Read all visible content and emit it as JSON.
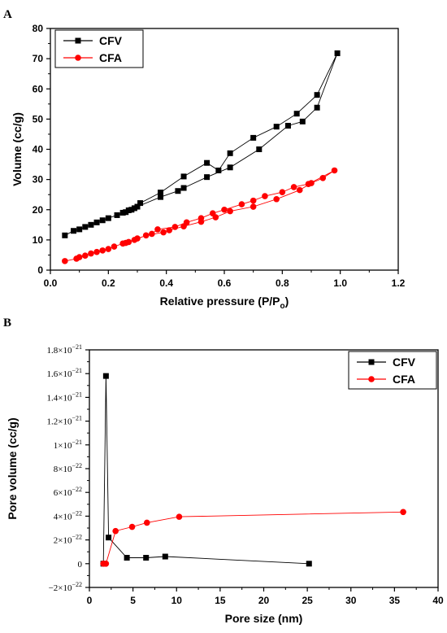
{
  "chart_data": [
    {
      "panel_label": "A",
      "type": "scatter",
      "xlabel": "Relative pressure (P/P",
      "xlabel_sub": "o",
      "xlabel_end": ")",
      "ylabel": "Volume (cc/g)",
      "xlim": [
        0.0,
        1.2
      ],
      "ylim": [
        0,
        80
      ],
      "xticks": [
        0.0,
        0.2,
        0.4,
        0.6,
        0.8,
        1.0,
        1.2
      ],
      "xtick_labels": [
        "0.0",
        "0.2",
        "0.4",
        "0.6",
        "0.8",
        "1.0",
        "1.2"
      ],
      "yticks": [
        0,
        10,
        20,
        30,
        40,
        50,
        60,
        70,
        80
      ],
      "ytick_labels": [
        "0",
        "10",
        "20",
        "30",
        "40",
        "50",
        "60",
        "70",
        "80"
      ],
      "legend": "top-left",
      "series": [
        {
          "name": "CFV",
          "color": "#000000",
          "marker": "square",
          "x": [
            0.05,
            0.08,
            0.1,
            0.12,
            0.14,
            0.16,
            0.18,
            0.2,
            0.23,
            0.26,
            0.28,
            0.3,
            0.38,
            0.44,
            0.46,
            0.54,
            0.62,
            0.72,
            0.82,
            0.87,
            0.92,
            0.99,
            0.92,
            0.85,
            0.78,
            0.7,
            0.62,
            0.58,
            0.54,
            0.46,
            0.38,
            0.31,
            0.29,
            0.27,
            0.25
          ],
          "y": [
            11.5,
            13,
            13.5,
            14.3,
            15,
            15.8,
            16.5,
            17.2,
            18.2,
            19.2,
            20,
            21,
            24.2,
            26.2,
            27.2,
            30.8,
            34,
            40,
            47.8,
            49.2,
            53.8,
            71.8,
            58,
            51.8,
            47.5,
            43.8,
            38.7,
            33,
            35.5,
            31,
            25.7,
            22.2,
            20.5,
            19.8,
            19
          ]
        },
        {
          "name": "CFA",
          "color": "#ff0000",
          "marker": "circle",
          "x": [
            0.05,
            0.09,
            0.1,
            0.12,
            0.14,
            0.16,
            0.18,
            0.2,
            0.22,
            0.25,
            0.27,
            0.29,
            0.33,
            0.39,
            0.41,
            0.46,
            0.52,
            0.57,
            0.62,
            0.7,
            0.78,
            0.86,
            0.9,
            0.94,
            0.98,
            0.89,
            0.84,
            0.8,
            0.74,
            0.7,
            0.66,
            0.6,
            0.56,
            0.52,
            0.47,
            0.43,
            0.37,
            0.35,
            0.3,
            0.26
          ],
          "y": [
            3,
            3.8,
            4.3,
            4.8,
            5.5,
            6,
            6.5,
            7,
            7.8,
            8.8,
            9.3,
            10,
            11.5,
            12.5,
            13.2,
            14.5,
            16,
            17.5,
            19.5,
            21,
            23.5,
            26.5,
            28.8,
            30.5,
            33,
            28.5,
            27.5,
            25.8,
            24.5,
            23,
            21.8,
            20,
            18.8,
            17.2,
            15.8,
            14.3,
            13.5,
            12,
            10.5,
            9
          ]
        }
      ]
    },
    {
      "panel_label": "B",
      "type": "line",
      "xlabel": "Pore size (nm)",
      "ylabel": "Pore volume (cc/g)",
      "xlim": [
        0,
        40
      ],
      "ylim": [
        -2e-22,
        1.8e-21
      ],
      "xticks": [
        0,
        5,
        10,
        15,
        20,
        25,
        30,
        35,
        40
      ],
      "xtick_labels": [
        "0",
        "5",
        "10",
        "15",
        "20",
        "25",
        "30",
        "35",
        "40"
      ],
      "yticks": [
        -2e-22,
        0,
        2e-22,
        4e-22,
        6e-22,
        8e-22,
        1e-21,
        1.2e-21,
        1.4e-21,
        1.6e-21,
        1.8e-21
      ],
      "ytick_labels": [
        {
          "m": "−2",
          "e": "−22"
        },
        {
          "m": "0",
          "e": ""
        },
        {
          "m": "2",
          "e": "−22"
        },
        {
          "m": "4",
          "e": "−22"
        },
        {
          "m": "6",
          "e": "−22"
        },
        {
          "m": "8",
          "e": "−22"
        },
        {
          "m": "1",
          "e": "−21"
        },
        {
          "m": "1.2",
          "e": "−21"
        },
        {
          "m": "1.4",
          "e": "−21"
        },
        {
          "m": "1.6",
          "e": "−21"
        },
        {
          "m": "1.8",
          "e": "−21"
        }
      ],
      "tick_times": "×10",
      "legend": "top-right",
      "series": [
        {
          "name": "CFV",
          "color": "#000000",
          "marker": "square",
          "x": [
            1.6,
            1.9,
            2.2,
            4.3,
            6.5,
            8.7,
            25.2
          ],
          "y": [
            0,
            1.58e-21,
            2.2e-22,
            5e-23,
            5e-23,
            6e-23,
            0
          ]
        },
        {
          "name": "CFA",
          "color": "#ff0000",
          "marker": "circle",
          "x": [
            1.6,
            1.9,
            3.0,
            4.9,
            6.6,
            10.3,
            36.0
          ],
          "y": [
            0,
            0,
            2.75e-22,
            3.1e-22,
            3.45e-22,
            3.95e-22,
            4.35e-22
          ]
        }
      ]
    }
  ]
}
